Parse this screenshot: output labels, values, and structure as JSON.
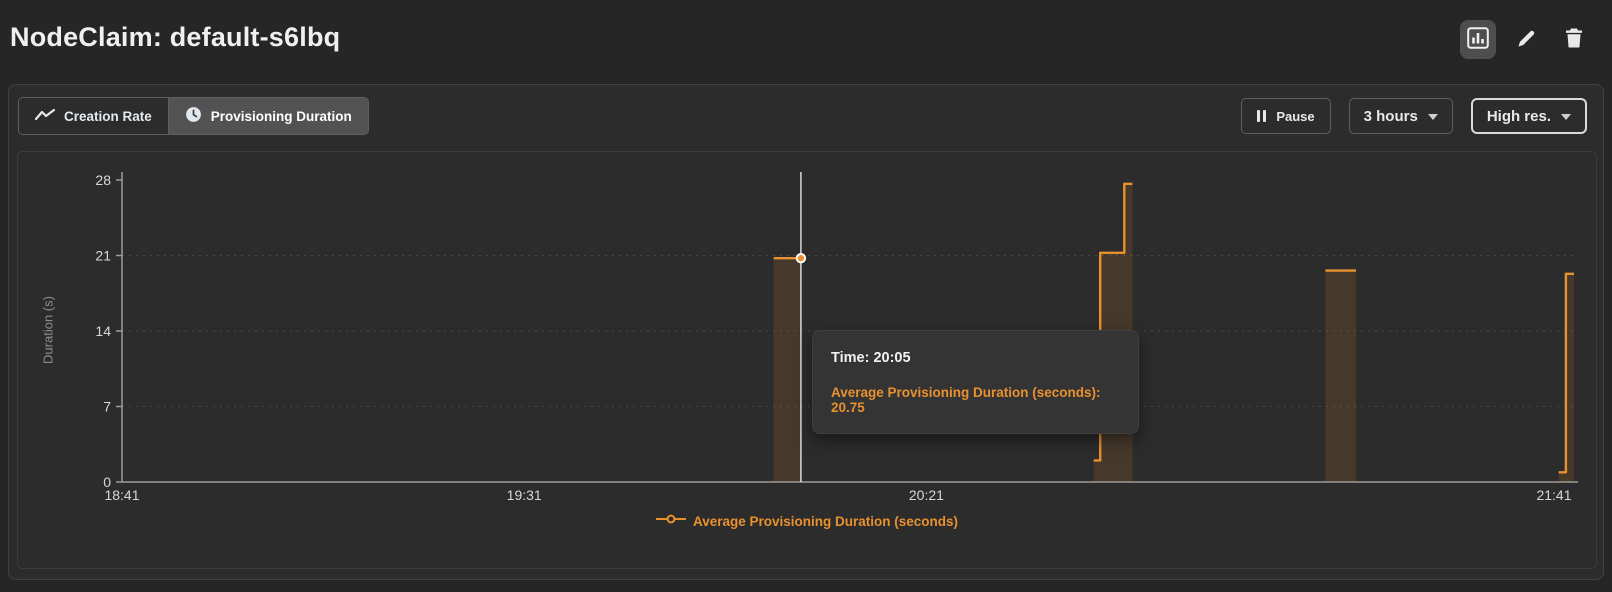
{
  "header": {
    "title": "NodeClaim: default-s6lbq",
    "actions": [
      {
        "name": "chart-view",
        "icon": "bar-chart-icon",
        "active": true
      },
      {
        "name": "edit",
        "icon": "pencil-icon",
        "active": false
      },
      {
        "name": "delete",
        "icon": "trash-icon",
        "active": false
      }
    ]
  },
  "toolbar": {
    "tabs": [
      {
        "label": "Creation Rate",
        "icon": "line-chart-icon",
        "selected": false
      },
      {
        "label": "Provisioning Duration",
        "icon": "clock-icon",
        "selected": true
      }
    ],
    "pause_label": "Pause",
    "range_label": "3 hours",
    "resolution_label": "High res."
  },
  "chart_data": {
    "type": "area",
    "step": true,
    "title": "",
    "xlabel": "",
    "ylabel": "Duration (s)",
    "x_unit": "minutes after 18:41",
    "xlim": [
      0,
      181
    ],
    "ylim": [
      0,
      28
    ],
    "y_ticks": [
      0,
      7,
      14,
      21,
      28
    ],
    "x_ticks": [
      {
        "minute": 0,
        "label": "18:41"
      },
      {
        "minute": 50,
        "label": "19:31"
      },
      {
        "minute": 100,
        "label": "20:21"
      },
      {
        "minute": 180,
        "label": "21:41"
      }
    ],
    "grid": "horizontal-dotted",
    "legend_position": "bottom-center",
    "series": [
      {
        "name": "Average Provisioning Duration (seconds)",
        "color": "#e8912e",
        "fill_opacity": 0.14,
        "segments": [
          [
            [
              81.0,
              20.75
            ],
            [
              84.4,
              20.75
            ]
          ],
          [
            [
              120.8,
              2.0
            ],
            [
              121.6,
              2.0
            ],
            [
              121.6,
              21.25
            ],
            [
              124.6,
              21.25
            ],
            [
              124.6,
              27.65
            ],
            [
              125.6,
              27.65
            ]
          ],
          [
            [
              149.6,
              19.6
            ],
            [
              153.4,
              19.6
            ]
          ],
          [
            [
              178.6,
              0.9
            ],
            [
              179.5,
              0.9
            ],
            [
              179.5,
              19.3
            ],
            [
              180.5,
              19.3
            ]
          ]
        ]
      }
    ],
    "crosshair": {
      "minute": 84.4,
      "value": 20.75
    }
  },
  "tooltip": {
    "time_line": "Time: 20:05",
    "value_line": "Average Provisioning Duration (seconds): 20.75"
  },
  "legend": {
    "label": "Average Provisioning Duration (seconds)",
    "marker": "line-dot-icon"
  },
  "colors": {
    "accent_orange": "#e8912e",
    "page_bg": "#262626",
    "card_bg": "#2c2c2c",
    "tooltip_bg": "#343434",
    "axis": "#9c9c9c",
    "tick_label": "#d8d8d8",
    "crosshair": "#f2f2f2"
  }
}
